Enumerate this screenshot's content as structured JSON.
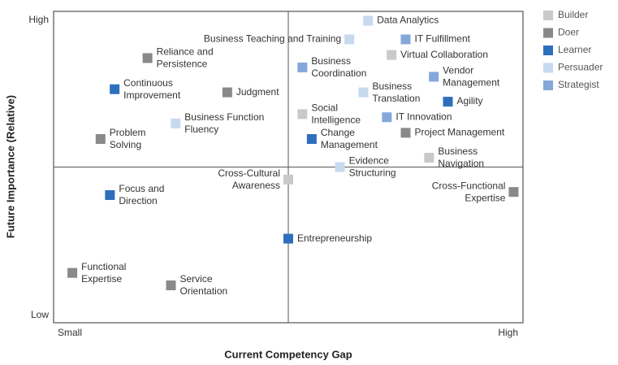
{
  "chart_data": {
    "type": "scatter",
    "x_label": "Current Competency Gap",
    "y_label": "Future Importance (Relative)",
    "xlim": [
      0,
      100
    ],
    "ylim": [
      0,
      100
    ],
    "xticks": [
      {
        "value": 0,
        "label": "Small"
      },
      {
        "value": 100,
        "label": "High"
      }
    ],
    "yticks": [
      {
        "value": 0,
        "label": "Low"
      },
      {
        "value": 100,
        "label": "High"
      }
    ],
    "legend": "right",
    "series": [
      {
        "name": "Builder",
        "color": "#c9c9c9",
        "x": [
          72,
          53,
          80,
          50
        ],
        "y": [
          86,
          67,
          53,
          46
        ],
        "labels": [
          [
            "Virtual Collaboration"
          ],
          [
            "Social",
            "Intelligence"
          ],
          [
            "Business",
            "Navigation"
          ],
          [
            "Cross-Cultural",
            "Awareness"
          ]
        ]
      },
      {
        "name": "Doer",
        "color": "#898989",
        "x": [
          20,
          37,
          75,
          10,
          98,
          4,
          25
        ],
        "y": [
          85,
          74,
          61,
          59,
          42,
          16,
          12
        ],
        "labels": [
          [
            "Reliance and",
            "Persistence"
          ],
          [
            "Judgment"
          ],
          [
            "Project Management"
          ],
          [
            "Problem",
            "Solving"
          ],
          [
            "Cross-Functional",
            "Expertise"
          ],
          [
            "Functional",
            "Expertise"
          ],
          [
            "Service",
            "Orientation"
          ]
        ]
      },
      {
        "name": "Learner",
        "color": "#2e6fbd",
        "x": [
          13,
          84,
          55,
          12,
          50
        ],
        "y": [
          75,
          71,
          59,
          41,
          27
        ],
        "labels": [
          [
            "Continuous",
            "Improvement"
          ],
          [
            "Agility"
          ],
          [
            "Change",
            "Management"
          ],
          [
            "Focus and",
            "Direction"
          ],
          [
            "Entrepreneurship"
          ]
        ]
      },
      {
        "name": "Persuader",
        "color": "#c6d9ef",
        "x": [
          67,
          63,
          66,
          26,
          61
        ],
        "y": [
          97,
          91,
          74,
          64,
          50
        ],
        "labels": [
          [
            "Data Analytics"
          ],
          [
            "Business Teaching and Training"
          ],
          [
            "Business",
            "Translation"
          ],
          [
            "Business Function",
            "Fluency"
          ],
          [
            "Evidence",
            "Structuring"
          ]
        ]
      },
      {
        "name": "Strategist",
        "color": "#84a8da",
        "x": [
          75,
          53,
          81,
          71
        ],
        "y": [
          91,
          82,
          79,
          66
        ],
        "labels": [
          [
            "IT Fulfillment"
          ],
          [
            "Business",
            "Coordination"
          ],
          [
            "Vendor",
            "Management"
          ],
          [
            "IT Innovation"
          ]
        ]
      }
    ]
  }
}
